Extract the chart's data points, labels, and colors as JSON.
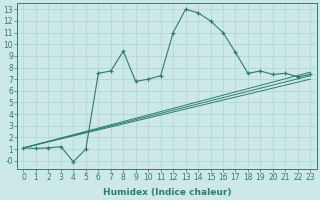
{
  "xlabel": "Humidex (Indice chaleur)",
  "ylabel": "",
  "bg_color": "#cce8e8",
  "line_color": "#2d7d6e",
  "xlim": [
    -0.5,
    23.5
  ],
  "ylim": [
    -0.7,
    13.5
  ],
  "xticks": [
    0,
    1,
    2,
    3,
    4,
    5,
    6,
    7,
    8,
    9,
    10,
    11,
    12,
    13,
    14,
    15,
    16,
    17,
    18,
    19,
    20,
    21,
    22,
    23
  ],
  "yticks": [
    0,
    1,
    2,
    3,
    4,
    5,
    6,
    7,
    8,
    9,
    10,
    11,
    12,
    13
  ],
  "ytick_labels": [
    "-0",
    "1",
    "2",
    "3",
    "4",
    "5",
    "6",
    "7",
    "8",
    "9",
    "10",
    "11",
    "12",
    "13"
  ],
  "main_x": [
    0,
    1,
    2,
    3,
    4,
    5,
    6,
    7,
    8,
    9,
    10,
    11,
    12,
    13,
    14,
    15,
    16,
    17,
    18,
    19,
    20,
    21,
    22,
    23
  ],
  "main_y": [
    1.1,
    1.05,
    1.1,
    1.2,
    -0.1,
    1.0,
    7.5,
    7.7,
    9.4,
    6.8,
    7.0,
    7.3,
    11.0,
    13.0,
    12.7,
    12.0,
    11.0,
    9.3,
    7.5,
    7.7,
    7.4,
    7.5,
    7.2,
    7.4
  ],
  "line1_x": [
    0,
    23
  ],
  "line1_y": [
    1.1,
    7.0
  ],
  "line2_x": [
    0,
    23
  ],
  "line2_y": [
    1.1,
    7.3
  ],
  "line3_x": [
    0,
    23
  ],
  "line3_y": [
    1.1,
    7.6
  ],
  "grid_color": "#aad4d4",
  "tick_fontsize": 5.5,
  "xlabel_fontsize": 6.5
}
